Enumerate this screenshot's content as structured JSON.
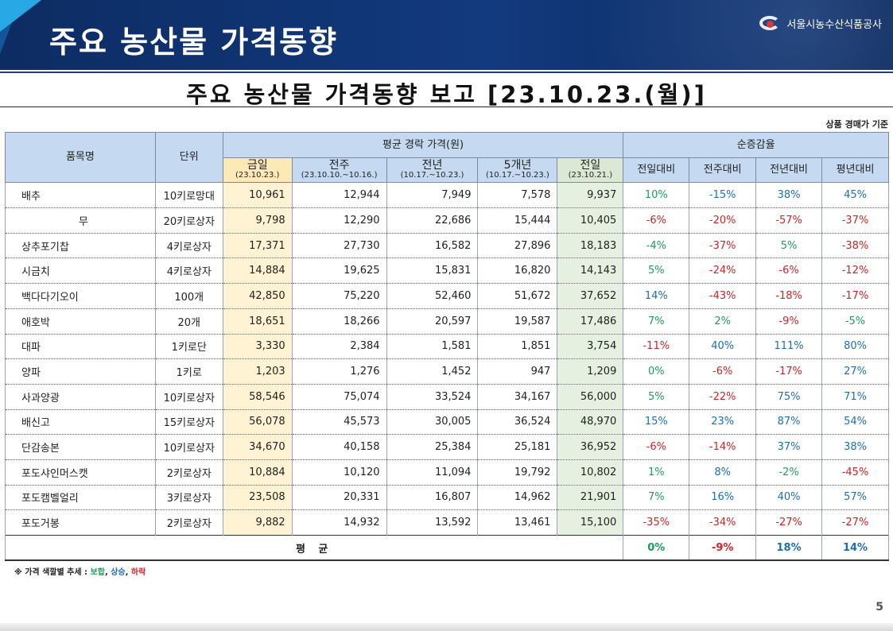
{
  "banner": {
    "title": "주요 농산물 가격동향",
    "org": "서울시농수산식품공사"
  },
  "report_title": "주요 농산물 가격동향 보고 [23.10.23.(월)]",
  "basis": "상품 경매가 기준",
  "headers": {
    "item": "품목명",
    "unit": "단위",
    "avg_price": "평균 경락 가격(원)",
    "change": "순증감율",
    "today": "금일",
    "today_date": "(23.10.23.)",
    "lastweek": "전주",
    "lastweek_date": "(23.10.10.~10.16.)",
    "lastyear": "전년",
    "lastyear_date": "(10.17.~10.23.)",
    "fiveyear": "5개년",
    "fiveyear_date": "(10.17.~10.23.)",
    "prevday": "전일",
    "prevday_date": "(23.10.21.)",
    "vs_prevday": "전일대비",
    "vs_lastweek": "전주대비",
    "vs_lastyear": "전년대비",
    "vs_normal": "평년대비"
  },
  "rows": [
    {
      "name": "배추",
      "unit": "10키로망대",
      "today": "10,961",
      "lastweek": "12,944",
      "lastyear": "7,949",
      "fiveyear": "7,578",
      "prevday": "9,937",
      "c1": "10%",
      "c2": "-15%",
      "c3": "38%",
      "c4": "45%"
    },
    {
      "name": "무",
      "unit": "20키로상자",
      "today": "9,798",
      "lastweek": "12,290",
      "lastyear": "22,686",
      "fiveyear": "15,444",
      "prevday": "10,405",
      "c1": "-6%",
      "c2": "-20%",
      "c3": "-57%",
      "c4": "-37%"
    },
    {
      "name": "상추포기찹",
      "unit": "4키로상자",
      "today": "17,371",
      "lastweek": "27,730",
      "lastyear": "16,582",
      "fiveyear": "27,896",
      "prevday": "18,183",
      "c1": "-4%",
      "c2": "-37%",
      "c3": "5%",
      "c4": "-38%"
    },
    {
      "name": "시금치",
      "unit": "4키로상자",
      "today": "14,884",
      "lastweek": "19,625",
      "lastyear": "15,831",
      "fiveyear": "16,820",
      "prevday": "14,143",
      "c1": "5%",
      "c2": "-24%",
      "c3": "-6%",
      "c4": "-12%"
    },
    {
      "name": "백다다기오이",
      "unit": "100개",
      "today": "42,850",
      "lastweek": "75,220",
      "lastyear": "52,460",
      "fiveyear": "51,672",
      "prevday": "37,652",
      "c1": "14%",
      "c2": "-43%",
      "c3": "-18%",
      "c4": "-17%"
    },
    {
      "name": "애호박",
      "unit": "20개",
      "today": "18,651",
      "lastweek": "18,266",
      "lastyear": "20,597",
      "fiveyear": "19,587",
      "prevday": "17,486",
      "c1": "7%",
      "c2": "2%",
      "c3": "-9%",
      "c4": "-5%"
    },
    {
      "name": "대파",
      "unit": "1키로단",
      "today": "3,330",
      "lastweek": "2,384",
      "lastyear": "1,581",
      "fiveyear": "1,851",
      "prevday": "3,754",
      "c1": "-11%",
      "c2": "40%",
      "c3": "111%",
      "c4": "80%"
    },
    {
      "name": "양파",
      "unit": "1키로",
      "today": "1,203",
      "lastweek": "1,276",
      "lastyear": "1,452",
      "fiveyear": "947",
      "prevday": "1,209",
      "c1": "0%",
      "c2": "-6%",
      "c3": "-17%",
      "c4": "27%"
    },
    {
      "name": "사과양광",
      "unit": "10키로상자",
      "today": "58,546",
      "lastweek": "75,074",
      "lastyear": "33,524",
      "fiveyear": "34,167",
      "prevday": "56,000",
      "c1": "5%",
      "c2": "-22%",
      "c3": "75%",
      "c4": "71%"
    },
    {
      "name": "배신고",
      "unit": "15키로상자",
      "today": "56,078",
      "lastweek": "45,573",
      "lastyear": "30,005",
      "fiveyear": "36,524",
      "prevday": "48,970",
      "c1": "15%",
      "c2": "23%",
      "c3": "87%",
      "c4": "54%"
    },
    {
      "name": "단감송본",
      "unit": "10키로상자",
      "today": "34,670",
      "lastweek": "40,158",
      "lastyear": "25,384",
      "fiveyear": "25,181",
      "prevday": "36,952",
      "c1": "-6%",
      "c2": "-14%",
      "c3": "37%",
      "c4": "38%"
    },
    {
      "name": "포도샤인머스캣",
      "unit": "2키로상자",
      "today": "10,884",
      "lastweek": "10,120",
      "lastyear": "11,094",
      "fiveyear": "19,792",
      "prevday": "10,802",
      "c1": "1%",
      "c2": "8%",
      "c3": "-2%",
      "c4": "-45%"
    },
    {
      "name": "포도캠벨얼리",
      "unit": "3키로상자",
      "today": "23,508",
      "lastweek": "20,331",
      "lastyear": "16,807",
      "fiveyear": "14,962",
      "prevday": "21,901",
      "c1": "7%",
      "c2": "16%",
      "c3": "40%",
      "c4": "57%"
    },
    {
      "name": "포도거봉",
      "unit": "2키로상자",
      "today": "9,882",
      "lastweek": "14,932",
      "lastyear": "13,592",
      "fiveyear": "13,461",
      "prevday": "15,100",
      "c1": "-35%",
      "c2": "-34%",
      "c3": "-27%",
      "c4": "-27%"
    }
  ],
  "colors": [
    [
      "green",
      "blue",
      "blue",
      "blue"
    ],
    [
      "red",
      "red",
      "red",
      "red"
    ],
    [
      "green",
      "red",
      "green",
      "red"
    ],
    [
      "green",
      "red",
      "red",
      "red"
    ],
    [
      "blue",
      "red",
      "red",
      "red"
    ],
    [
      "green",
      "green",
      "red",
      "green"
    ],
    [
      "red",
      "blue",
      "blue",
      "blue"
    ],
    [
      "green",
      "red",
      "red",
      "blue"
    ],
    [
      "green",
      "red",
      "blue",
      "blue"
    ],
    [
      "blue",
      "blue",
      "blue",
      "blue"
    ],
    [
      "red",
      "red",
      "blue",
      "blue"
    ],
    [
      "green",
      "blue",
      "green",
      "red"
    ],
    [
      "green",
      "blue",
      "blue",
      "blue"
    ],
    [
      "red",
      "red",
      "red",
      "red"
    ]
  ],
  "average": {
    "label": "평 균",
    "c1": "0%",
    "c2": "-9%",
    "c3": "18%",
    "c4": "14%"
  },
  "legend": {
    "prefix": "※ 가격 색깔별 추세 : ",
    "flat": "보합",
    "sep1": ", ",
    "up": "상승",
    "sep2": ", ",
    "down": "하락"
  },
  "page_number": "5"
}
